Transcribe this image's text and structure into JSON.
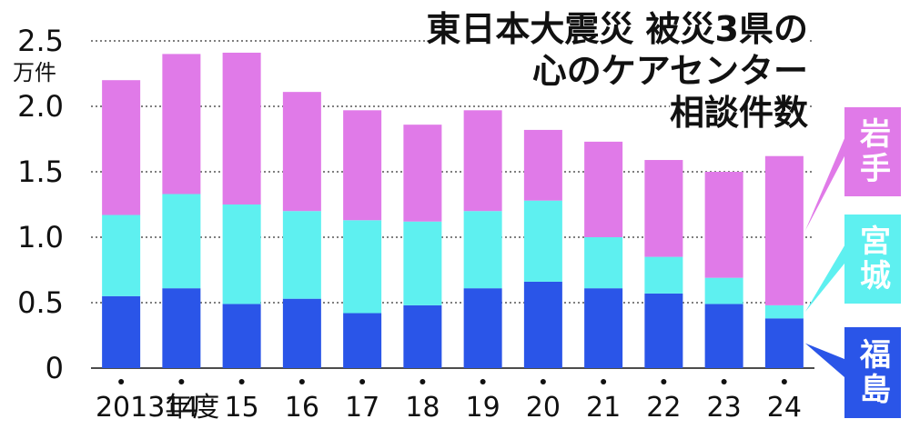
{
  "chart_data": {
    "type": "bar",
    "stacked": true,
    "title_lines": [
      "東日本大震災 被災3県の",
      "心のケアセンター",
      "相談件数"
    ],
    "unit": "万件",
    "categories": [
      "2013年度",
      "14",
      "15",
      "16",
      "17",
      "18",
      "19",
      "20",
      "21",
      "22",
      "23",
      "24"
    ],
    "series": [
      {
        "name": "福島",
        "color": "#2a55e8",
        "values": [
          0.55,
          0.61,
          0.49,
          0.53,
          0.42,
          0.48,
          0.61,
          0.66,
          0.61,
          0.57,
          0.49,
          0.38
        ]
      },
      {
        "name": "宮城",
        "color": "#5ef0f0",
        "values": [
          0.62,
          0.72,
          0.76,
          0.67,
          0.71,
          0.64,
          0.59,
          0.62,
          0.39,
          0.28,
          0.2,
          0.1
        ]
      },
      {
        "name": "岩手",
        "color": "#e07ae8",
        "values": [
          1.03,
          1.07,
          1.16,
          0.91,
          0.84,
          0.74,
          0.77,
          0.54,
          0.73,
          0.74,
          0.81,
          1.14
        ]
      }
    ],
    "yticks": [
      "0",
      "0.5",
      "1.0",
      "1.5",
      "2.0",
      "2.5"
    ],
    "ylim": [
      0,
      2.5
    ],
    "grid": "dotted horizontal",
    "legend_position": "right, vertical labels"
  }
}
